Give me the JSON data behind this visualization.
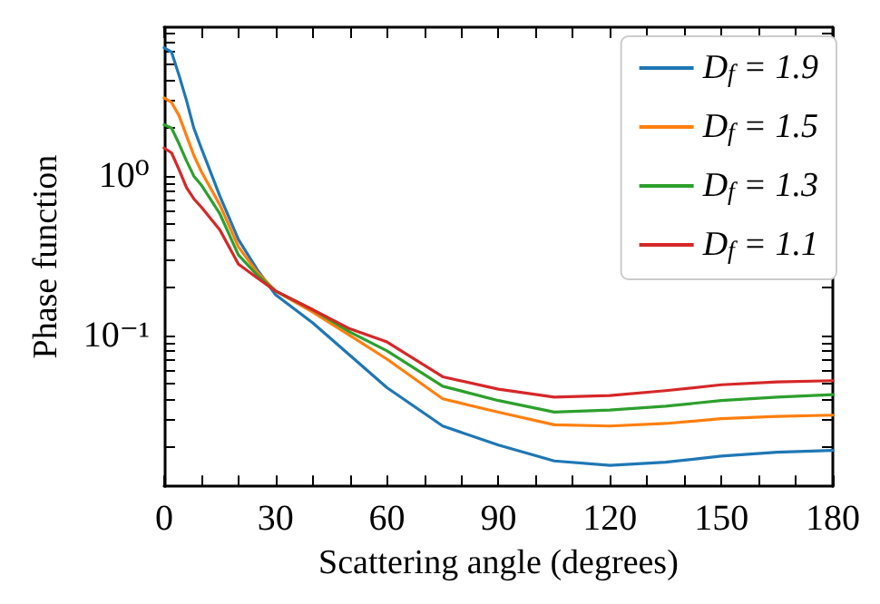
{
  "chart_data": {
    "type": "line",
    "xlabel": "Scattering angle (degrees)",
    "ylabel": "Phase function",
    "log": "y",
    "grid": false,
    "legend": "top right",
    "marker": "none",
    "line_style": "solid",
    "x": [
      0,
      2,
      4,
      6,
      8,
      10,
      15,
      20,
      25,
      30,
      40,
      50,
      60,
      75,
      90,
      105,
      120,
      135,
      150,
      165,
      180
    ],
    "xlim": [
      0,
      180
    ],
    "xticks": [
      0,
      {
        "value": 10,
        "label": null
      },
      {
        "value": 20,
        "label": null
      },
      30,
      {
        "value": 40,
        "label": null
      },
      {
        "value": 50,
        "label": null
      },
      60,
      {
        "value": 70,
        "label": null
      },
      {
        "value": 80,
        "label": null
      },
      90,
      {
        "value": 100,
        "label": null
      },
      {
        "value": 110,
        "label": null
      },
      120,
      {
        "value": 130,
        "label": null
      },
      {
        "value": 140,
        "label": null
      },
      150,
      {
        "value": 160,
        "label": null
      },
      {
        "value": 170,
        "label": null
      },
      180
    ],
    "ylim": [
      0.0113,
      8.6
    ],
    "yticks": [
      {
        "value": 0.02,
        "label": null
      },
      {
        "value": 0.03,
        "label": null
      },
      {
        "value": 0.04,
        "label": null
      },
      {
        "value": 0.05,
        "label": null
      },
      {
        "value": 0.06,
        "label": null
      },
      {
        "value": 0.07,
        "label": null
      },
      {
        "value": 0.08,
        "label": null
      },
      {
        "value": 0.09,
        "label": null
      },
      {
        "value": 0.1,
        "label": "10⁻¹"
      },
      {
        "value": 0.2,
        "label": null
      },
      {
        "value": 0.3,
        "label": null
      },
      {
        "value": 0.4,
        "label": null
      },
      {
        "value": 0.5,
        "label": null
      },
      {
        "value": 0.6,
        "label": null
      },
      {
        "value": 0.7,
        "label": null
      },
      {
        "value": 0.8,
        "label": null
      },
      {
        "value": 0.9,
        "label": null
      },
      {
        "value": 1,
        "label": "10⁰"
      },
      {
        "value": 2,
        "label": null
      },
      {
        "value": 3,
        "label": null
      },
      {
        "value": 4,
        "label": null
      },
      {
        "value": 5,
        "label": null
      },
      {
        "value": 6,
        "label": null
      },
      {
        "value": 7,
        "label": null
      },
      {
        "value": 8,
        "label": null
      }
    ],
    "series": [
      {
        "name": "D$_{f}$ = 1.9",
        "color": "#1f77b4",
        "values": [
          6.4,
          6.0,
          4.3,
          3.0,
          2.0,
          1.5,
          0.75,
          0.4,
          0.26,
          0.18,
          0.12,
          0.075,
          0.047,
          0.027,
          0.0205,
          0.0163,
          0.0153,
          0.016,
          0.0175,
          0.0185,
          0.019
        ]
      },
      {
        "name": "D$_{f}$ = 1.5",
        "color": "#ff7f0e",
        "values": [
          3.1,
          2.9,
          2.4,
          1.8,
          1.35,
          1.07,
          0.66,
          0.36,
          0.25,
          0.19,
          0.14,
          0.1,
          0.071,
          0.04,
          0.033,
          0.0275,
          0.027,
          0.028,
          0.03,
          0.031,
          0.0316
        ]
      },
      {
        "name": "D$_{f}$ = 1.3",
        "color": "#2ca02c",
        "values": [
          2.1,
          2.0,
          1.6,
          1.25,
          1.0,
          0.88,
          0.58,
          0.32,
          0.24,
          0.19,
          0.145,
          0.105,
          0.08,
          0.048,
          0.039,
          0.033,
          0.034,
          0.036,
          0.039,
          0.041,
          0.0425
        ]
      },
      {
        "name": "D$_{f}$ = 1.1",
        "color": "#d62728",
        "values": [
          1.5,
          1.4,
          1.1,
          0.85,
          0.72,
          0.64,
          0.46,
          0.28,
          0.23,
          0.19,
          0.145,
          0.11,
          0.091,
          0.055,
          0.046,
          0.041,
          0.042,
          0.045,
          0.049,
          0.051,
          0.052
        ]
      }
    ]
  }
}
